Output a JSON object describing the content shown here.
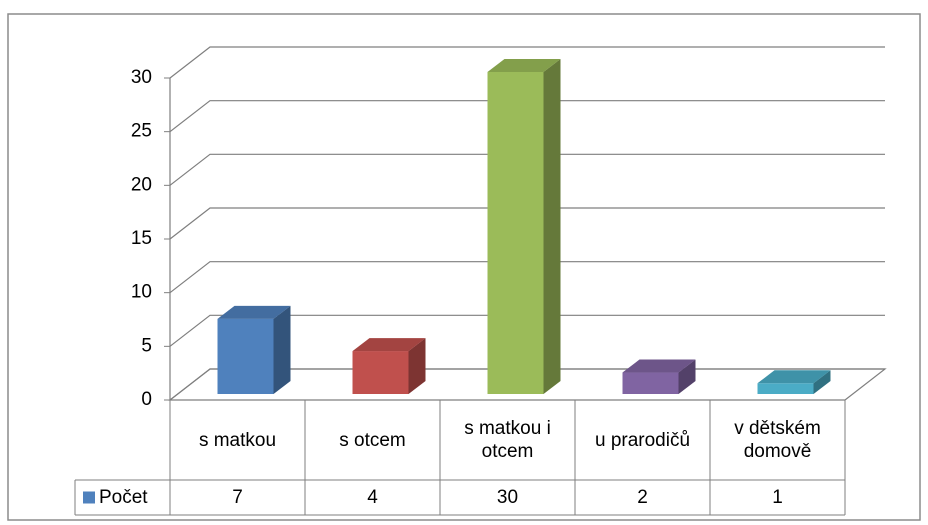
{
  "chart_data": {
    "type": "bar3d",
    "categories": [
      "s matkou",
      "s otcem",
      "s matkou i otcem",
      "u prarodičů",
      "v dětském domově"
    ],
    "series": [
      {
        "name": "Počet",
        "color": "#4f81bd",
        "colors": [
          "#4f81bd",
          "#c0504d",
          "#9bbb59",
          "#8064a2",
          "#4bacc6"
        ],
        "values": [
          7,
          4,
          30,
          2,
          1
        ]
      }
    ],
    "ylim": [
      0,
      30
    ],
    "yticks": [
      0,
      5,
      10,
      15,
      20,
      25,
      30
    ],
    "grid": true,
    "data_table": true
  }
}
